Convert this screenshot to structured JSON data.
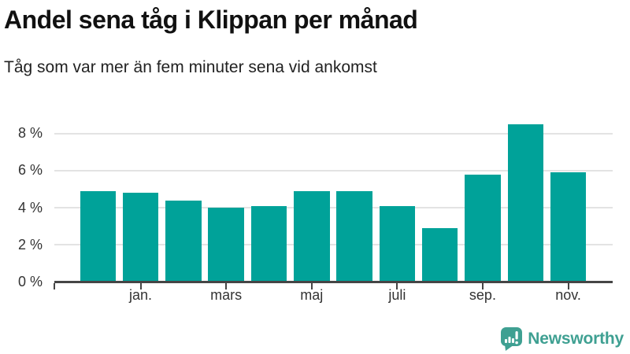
{
  "chart_data": {
    "type": "bar",
    "title": "Andel sena tåg i Klippan per månad",
    "subtitle": "Tåg som var mer än fem minuter sena vid ankomst",
    "values": [
      4.9,
      4.8,
      4.4,
      4.0,
      4.1,
      4.9,
      4.9,
      4.1,
      2.9,
      5.8,
      8.5,
      5.9
    ],
    "bar_count": 12,
    "x_tick_labels": [
      "jan.",
      "mars",
      "maj",
      "juli",
      "sep.",
      "nov."
    ],
    "x_tick_bar_indices": [
      1,
      3,
      5,
      7,
      9,
      11
    ],
    "y_ticks": [
      0,
      2,
      4,
      6,
      8
    ],
    "y_tick_labels": [
      "0 %",
      "2 %",
      "4 %",
      "6 %",
      "8 %"
    ],
    "y_unit": "%",
    "ylim": [
      0,
      8.8
    ],
    "grid": "horizontal",
    "legend": "none"
  },
  "colors": {
    "bar": "#00a299",
    "grid": "#e3e3e3",
    "axis": "#454545",
    "tick_text": "#333333",
    "title_text": "#111111",
    "subtitle_text": "#222222",
    "brand": "#3fa092"
  },
  "footer": {
    "brand": "Newsworthy",
    "logo_icon": "newsworthy-speech-bubble-bar-chart-icon"
  }
}
